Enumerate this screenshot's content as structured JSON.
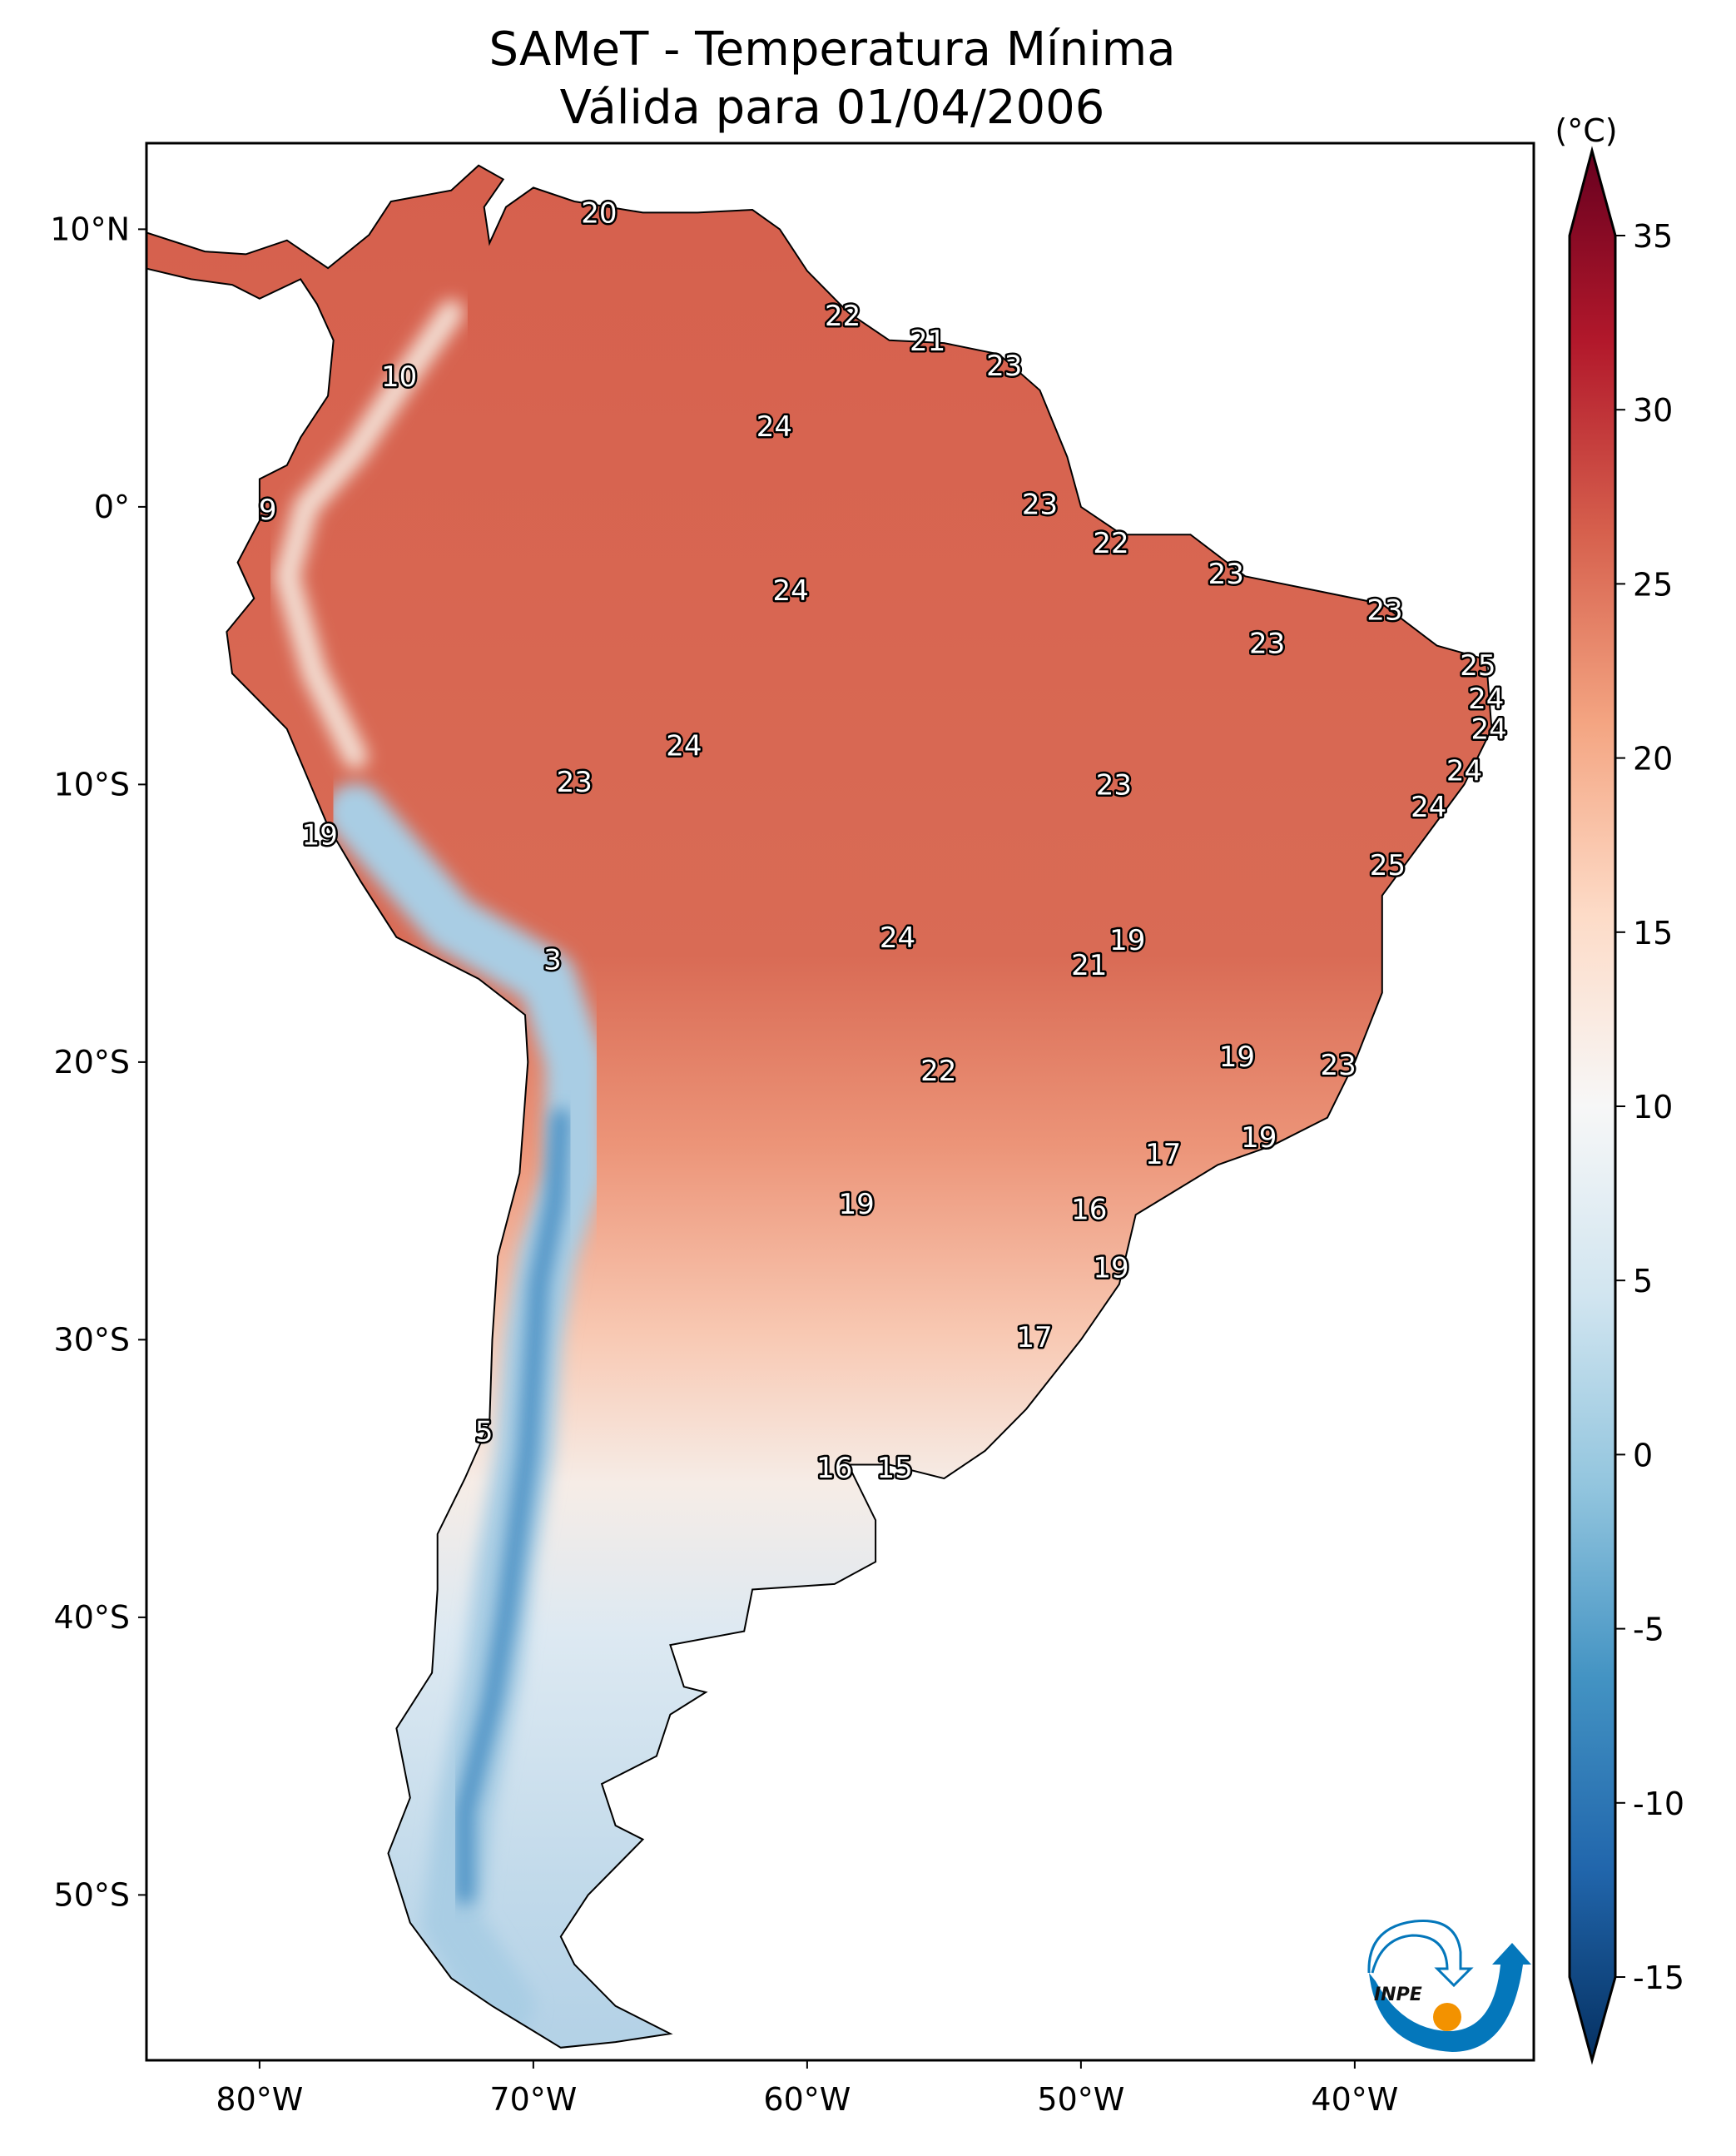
{
  "title": {
    "line1": "SAMeT - Temperatura Mínima",
    "line2": "Válida para 01/04/2006"
  },
  "map": {
    "region": "South America",
    "lon_range": [
      -84.1,
      -33.5
    ],
    "lat_range": [
      -55.9,
      13.1
    ],
    "lat_ticks": [
      {
        "value": 10,
        "label": "10°N"
      },
      {
        "value": 0,
        "label": "0°"
      },
      {
        "value": -10,
        "label": "10°S"
      },
      {
        "value": -20,
        "label": "20°S"
      },
      {
        "value": -30,
        "label": "30°S"
      },
      {
        "value": -40,
        "label": "40°S"
      },
      {
        "value": -50,
        "label": "50°S"
      }
    ],
    "lon_ticks": [
      {
        "value": -80,
        "label": "80°W"
      },
      {
        "value": -70,
        "label": "70°W"
      },
      {
        "value": -60,
        "label": "60°W"
      },
      {
        "value": -50,
        "label": "50°W"
      },
      {
        "value": -40,
        "label": "40°W"
      }
    ],
    "value_labels": [
      {
        "lon": -67.6,
        "lat": 10.6,
        "text": "20"
      },
      {
        "lon": -58.7,
        "lat": 6.9,
        "text": "22"
      },
      {
        "lon": -55.6,
        "lat": 6.0,
        "text": "21"
      },
      {
        "lon": -52.8,
        "lat": 5.1,
        "text": "23"
      },
      {
        "lon": -61.2,
        "lat": 2.9,
        "text": "24"
      },
      {
        "lon": -74.9,
        "lat": 4.7,
        "text": "10"
      },
      {
        "lon": -79.7,
        "lat": -0.1,
        "text": "9"
      },
      {
        "lon": -51.5,
        "lat": 0.1,
        "text": "23"
      },
      {
        "lon": -48.9,
        "lat": -1.3,
        "text": "22"
      },
      {
        "lon": -44.7,
        "lat": -2.4,
        "text": "23"
      },
      {
        "lon": -38.9,
        "lat": -3.7,
        "text": "23"
      },
      {
        "lon": -43.2,
        "lat": -4.9,
        "text": "23"
      },
      {
        "lon": -35.5,
        "lat": -5.7,
        "text": "25"
      },
      {
        "lon": -35.2,
        "lat": -6.9,
        "text": "24"
      },
      {
        "lon": -35.1,
        "lat": -8.0,
        "text": "24"
      },
      {
        "lon": -60.6,
        "lat": -3.0,
        "text": "24"
      },
      {
        "lon": -64.5,
        "lat": -8.6,
        "text": "24"
      },
      {
        "lon": -68.5,
        "lat": -9.9,
        "text": "23"
      },
      {
        "lon": -48.8,
        "lat": -10.0,
        "text": "23"
      },
      {
        "lon": -36.0,
        "lat": -9.5,
        "text": "24"
      },
      {
        "lon": -37.3,
        "lat": -10.8,
        "text": "24"
      },
      {
        "lon": -38.8,
        "lat": -12.9,
        "text": "25"
      },
      {
        "lon": -77.8,
        "lat": -11.8,
        "text": "19"
      },
      {
        "lon": -69.3,
        "lat": -16.3,
        "text": "3"
      },
      {
        "lon": -56.7,
        "lat": -15.5,
        "text": "24"
      },
      {
        "lon": -48.3,
        "lat": -15.6,
        "text": "19"
      },
      {
        "lon": -49.7,
        "lat": -16.5,
        "text": "21"
      },
      {
        "lon": -44.3,
        "lat": -19.8,
        "text": "19"
      },
      {
        "lon": -40.6,
        "lat": -20.1,
        "text": "23"
      },
      {
        "lon": -55.2,
        "lat": -20.3,
        "text": "22"
      },
      {
        "lon": -47.0,
        "lat": -23.3,
        "text": "17"
      },
      {
        "lon": -43.5,
        "lat": -22.7,
        "text": "19"
      },
      {
        "lon": -58.2,
        "lat": -25.1,
        "text": "19"
      },
      {
        "lon": -49.7,
        "lat": -25.3,
        "text": "16"
      },
      {
        "lon": -48.9,
        "lat": -27.4,
        "text": "19"
      },
      {
        "lon": -51.7,
        "lat": -29.9,
        "text": "17"
      },
      {
        "lon": -71.8,
        "lat": -33.3,
        "text": "5"
      },
      {
        "lon": -59.0,
        "lat": -34.6,
        "text": "16"
      },
      {
        "lon": -56.8,
        "lat": -34.6,
        "text": "15"
      }
    ]
  },
  "colorbar": {
    "unit": "(°C)",
    "colormap": "RdBu_r",
    "range": [
      -15,
      35
    ],
    "extend": "both",
    "ticks": [
      35,
      30,
      25,
      20,
      15,
      10,
      5,
      0,
      -5,
      -10,
      -15
    ],
    "tick_labels": [
      "35",
      "30",
      "25",
      "20",
      "15",
      "10",
      "5",
      "0",
      "-5",
      "-10",
      "-15"
    ],
    "colors": [
      "#67001f",
      "#b2182b",
      "#d6604d",
      "#f4a582",
      "#fddbc7",
      "#f7f7f7",
      "#d1e5f0",
      "#92c5de",
      "#4393c3",
      "#2166ac",
      "#053061"
    ]
  },
  "logo": {
    "text": "INPE",
    "blue": "#0477bb",
    "orange": "#f39200"
  }
}
